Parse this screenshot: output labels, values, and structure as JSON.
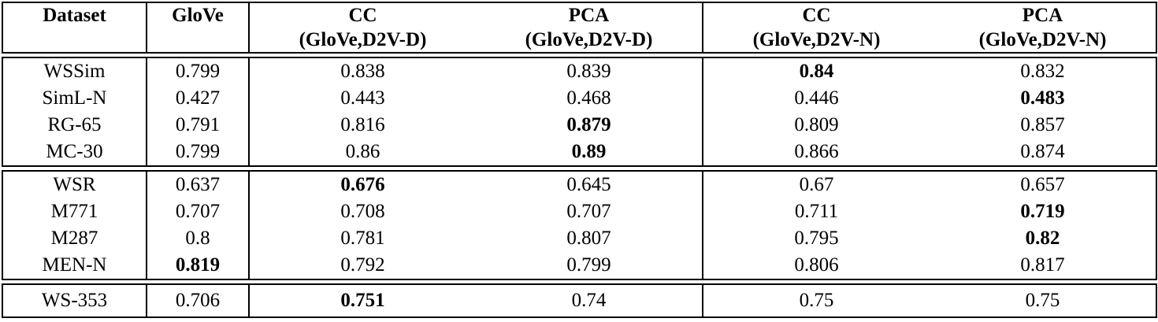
{
  "table": {
    "background": "#ffffff",
    "text_color": "#000000",
    "border_color": "#000000",
    "columns": [
      {
        "label": "Dataset",
        "sub": ""
      },
      {
        "label": "GloVe",
        "sub": ""
      },
      {
        "label": "CC",
        "sub": "(GloVe,D2V-D)"
      },
      {
        "label": "PCA",
        "sub": "(GloVe,D2V-D)"
      },
      {
        "label": "CC",
        "sub": "(GloVe,D2V-N)"
      },
      {
        "label": "PCA",
        "sub": "(GloVe,D2V-N)"
      }
    ],
    "blocks": [
      {
        "rows": [
          {
            "label": "WSSim",
            "values": [
              "0.799",
              "0.838",
              "0.839",
              "0.84",
              "0.832"
            ],
            "bold": [
              3
            ]
          },
          {
            "label": "SimL-N",
            "values": [
              "0.427",
              "0.443",
              "0.468",
              "0.446",
              "0.483"
            ],
            "bold": [
              4
            ]
          },
          {
            "label": "RG-65",
            "values": [
              "0.791",
              "0.816",
              "0.879",
              "0.809",
              "0.857"
            ],
            "bold": [
              2
            ]
          },
          {
            "label": "MC-30",
            "values": [
              "0.799",
              "0.86",
              "0.89",
              "0.866",
              "0.874"
            ],
            "bold": [
              2
            ]
          }
        ]
      },
      {
        "rows": [
          {
            "label": "WSR",
            "values": [
              "0.637",
              "0.676",
              "0.645",
              "0.67",
              "0.657"
            ],
            "bold": [
              1
            ]
          },
          {
            "label": "M771",
            "values": [
              "0.707",
              "0.708",
              "0.707",
              "0.711",
              "0.719"
            ],
            "bold": [
              4
            ]
          },
          {
            "label": "M287",
            "values": [
              "0.8",
              "0.781",
              "0.807",
              "0.795",
              "0.82"
            ],
            "bold": [
              4
            ]
          },
          {
            "label": "MEN-N",
            "values": [
              "0.819",
              "0.792",
              "0.799",
              "0.806",
              "0.817"
            ],
            "bold": [
              0
            ]
          }
        ]
      },
      {
        "rows": [
          {
            "label": "WS-353",
            "values": [
              "0.706",
              "0.751",
              "0.74",
              "0.75",
              "0.75"
            ],
            "bold": [
              1
            ]
          }
        ]
      }
    ]
  }
}
